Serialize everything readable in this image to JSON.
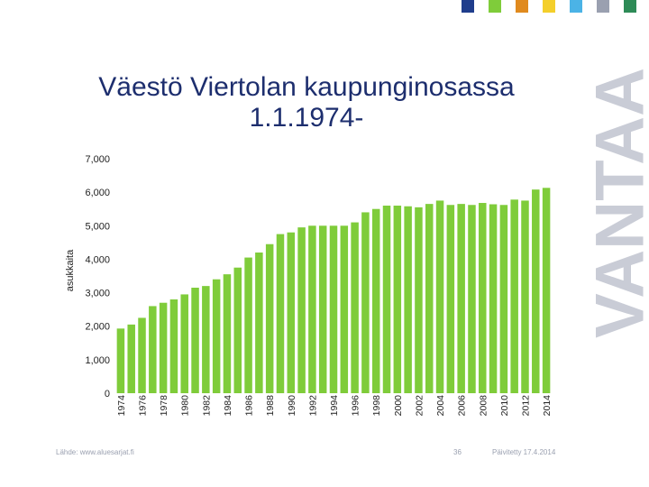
{
  "colors": {
    "bar": "#7fcc3a",
    "title": "#1d2e6e",
    "brand": "#c9ccd6",
    "squares": [
      "#1f3d8c",
      "#7fcc3a",
      "#e08a1e",
      "#f4cf2b",
      "#4bb3e6",
      "#9aa0b0",
      "#2e8b57"
    ]
  },
  "title_lines": [
    "Väestö Viertolan kaupunginosassa",
    "1.1.1974-"
  ],
  "brand_text": "VANTAA",
  "footer": {
    "source": "Lähde: www.aluesarjat.fi",
    "page": "36",
    "updated": "Päivitetty 17.4.2014"
  },
  "chart_data": {
    "type": "bar",
    "title": "Väestö Viertolan kaupunginosassa 1.1.1974-",
    "ylabel": "asukkaita",
    "xlabel": "",
    "ylim": [
      0,
      7000
    ],
    "yticks": [
      0,
      1000,
      2000,
      3000,
      4000,
      5000,
      6000,
      7000
    ],
    "ytick_labels": [
      "0",
      "1,000",
      "2,000",
      "3,000",
      "4,000",
      "5,000",
      "6,000",
      "7,000"
    ],
    "x_tick_labels": [
      "1974",
      "1976",
      "1978",
      "1980",
      "1982",
      "1984",
      "1986",
      "1988",
      "1990",
      "1992",
      "1994",
      "1996",
      "1998",
      "2000",
      "2002",
      "2004",
      "2006",
      "2008",
      "2010",
      "2012",
      "2014"
    ],
    "categories": [
      "1974",
      "1975",
      "1976",
      "1977",
      "1978",
      "1979",
      "1980",
      "1981",
      "1982",
      "1983",
      "1984",
      "1985",
      "1986",
      "1987",
      "1988",
      "1989",
      "1990",
      "1991",
      "1992",
      "1993",
      "1994",
      "1995",
      "1996",
      "1997",
      "1998",
      "1999",
      "2000",
      "2001",
      "2002",
      "2003",
      "2004",
      "2005",
      "2006",
      "2007",
      "2008",
      "2009",
      "2010",
      "2011",
      "2012",
      "2013",
      "2014"
    ],
    "values": [
      1930,
      2050,
      2250,
      2600,
      2700,
      2800,
      2950,
      3150,
      3200,
      3400,
      3550,
      3750,
      4050,
      4200,
      4450,
      4750,
      4800,
      4950,
      5000,
      5000,
      5000,
      5000,
      5100,
      5400,
      5500,
      5600,
      5600,
      5580,
      5550,
      5650,
      5750,
      5620,
      5650,
      5620,
      5680,
      5640,
      5620,
      5780,
      5750,
      6080,
      6130
    ],
    "grid": false,
    "legend": "none"
  }
}
